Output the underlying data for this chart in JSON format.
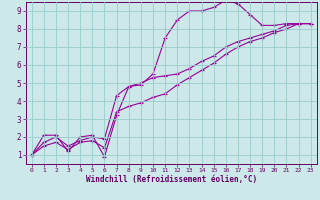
{
  "xlabel": "Windchill (Refroidissement éolien,°C)",
  "bg_color": "#cce8e8",
  "line_color": "#990099",
  "grid_color": "#99cccc",
  "axis_color": "#660066",
  "text_color": "#660066",
  "xlim": [
    -0.5,
    23.5
  ],
  "ylim": [
    0.5,
    9.5
  ],
  "xticks": [
    0,
    1,
    2,
    3,
    4,
    5,
    6,
    7,
    8,
    9,
    10,
    11,
    12,
    13,
    14,
    15,
    16,
    17,
    18,
    19,
    20,
    21,
    22,
    23
  ],
  "yticks": [
    1,
    2,
    3,
    4,
    5,
    6,
    7,
    8,
    9
  ],
  "line1_x": [
    0,
    1,
    2,
    3,
    4,
    5,
    6,
    7,
    8,
    9,
    10,
    11,
    12,
    13,
    14,
    15,
    16,
    17,
    18,
    19,
    20,
    21,
    22,
    23
  ],
  "line1_y": [
    1.0,
    2.1,
    2.1,
    1.2,
    2.0,
    2.1,
    0.9,
    3.2,
    4.8,
    4.9,
    5.5,
    7.5,
    8.5,
    9.0,
    9.0,
    9.2,
    9.6,
    9.4,
    8.8,
    8.2,
    8.2,
    8.3,
    8.3,
    8.3
  ],
  "line2_x": [
    0,
    1,
    2,
    3,
    4,
    5,
    6,
    7,
    8,
    9,
    10,
    11,
    12,
    13,
    14,
    15,
    16,
    17,
    18,
    19,
    20,
    21,
    22,
    23
  ],
  "line2_y": [
    1.0,
    1.7,
    2.0,
    1.5,
    1.8,
    2.0,
    1.9,
    4.3,
    4.8,
    5.0,
    5.3,
    5.4,
    5.5,
    5.8,
    6.2,
    6.5,
    7.0,
    7.3,
    7.5,
    7.7,
    7.9,
    8.2,
    8.3,
    8.3
  ],
  "line3_x": [
    0,
    1,
    2,
    3,
    4,
    5,
    6,
    7,
    8,
    9,
    10,
    11,
    12,
    13,
    14,
    15,
    16,
    17,
    18,
    19,
    20,
    21,
    22,
    23
  ],
  "line3_y": [
    1.0,
    1.5,
    1.7,
    1.3,
    1.7,
    1.8,
    1.4,
    3.4,
    3.7,
    3.9,
    4.2,
    4.4,
    4.9,
    5.3,
    5.7,
    6.1,
    6.6,
    7.0,
    7.3,
    7.5,
    7.8,
    8.0,
    8.3,
    8.3
  ]
}
